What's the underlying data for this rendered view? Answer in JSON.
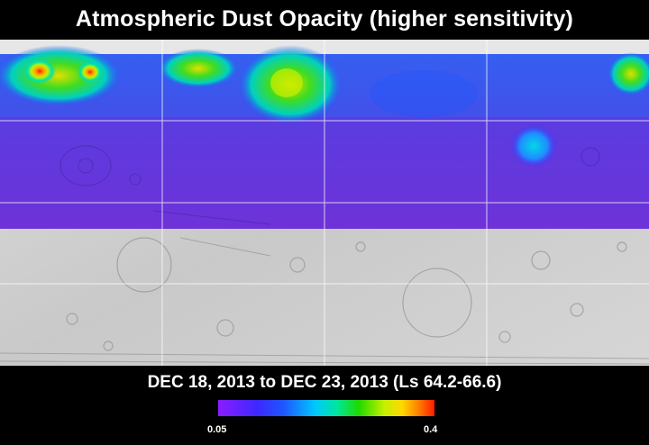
{
  "title": "Atmospheric Dust Opacity (higher sensitivity)",
  "date_range": "DEC 18, 2013 to DEC 23, 2013 (Ls 64.2-66.6)",
  "colorbar": {
    "min_label": "0.05",
    "max_label": "0.4",
    "colors": [
      "#8a1dff",
      "#3d28ff",
      "#1f55ff",
      "#00c8ff",
      "#00e69c",
      "#20d800",
      "#c8f000",
      "#ffd800",
      "#ff7a00",
      "#ff1a00"
    ]
  },
  "map": {
    "base_color": "#cfcfcf",
    "overlay_base_color": "#6a3bd6",
    "grid_color": "#ffffff"
  }
}
